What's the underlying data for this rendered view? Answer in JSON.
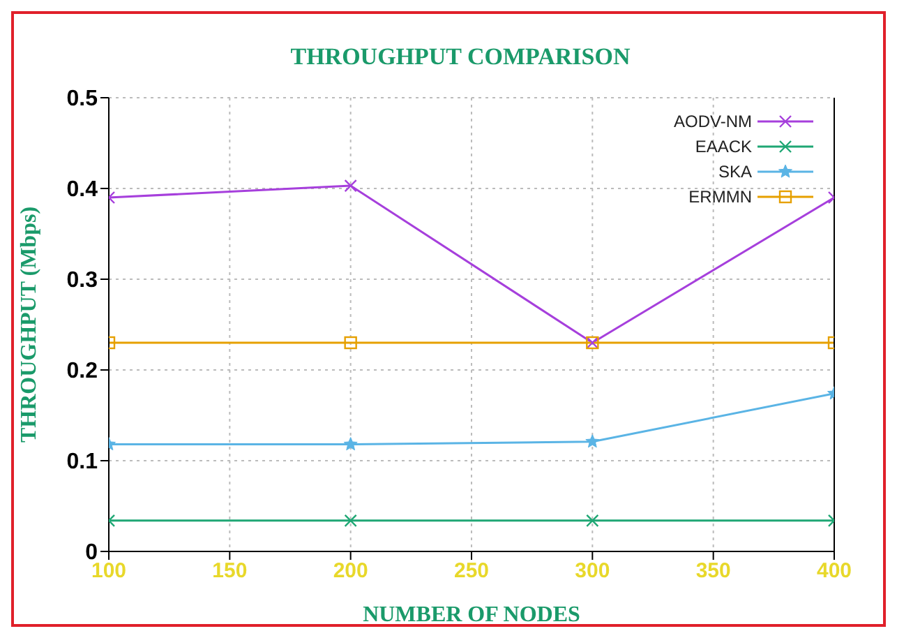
{
  "chart_data": {
    "type": "line",
    "title": "THROUGHPUT COMPARISON",
    "xlabel": "NUMBER OF NODES",
    "ylabel": "THROUGHPUT (Mbps)",
    "x": [
      100,
      200,
      300,
      400
    ],
    "series": [
      {
        "name": "AODV-NM",
        "color": "#a63fdc",
        "marker": "cross",
        "values": [
          0.39,
          0.403,
          0.23,
          0.39
        ]
      },
      {
        "name": "EAACK",
        "color": "#1fa774",
        "marker": "cross",
        "values": [
          0.034,
          0.034,
          0.034,
          0.034
        ]
      },
      {
        "name": "SKA",
        "color": "#5ab4e5",
        "marker": "star",
        "values": [
          0.118,
          0.118,
          0.121,
          0.174
        ]
      },
      {
        "name": "ERMMN",
        "color": "#e6a000",
        "marker": "square",
        "values": [
          0.23,
          0.23,
          0.23,
          0.23
        ]
      }
    ],
    "xlim": [
      100,
      400
    ],
    "xticks": [
      100,
      150,
      200,
      250,
      300,
      350,
      400
    ],
    "ylim": [
      0,
      0.5
    ],
    "yticks": [
      0,
      0.1,
      0.2,
      0.3,
      0.4,
      0.5
    ],
    "grid": true,
    "legend": "top right",
    "line_style": "solid"
  }
}
